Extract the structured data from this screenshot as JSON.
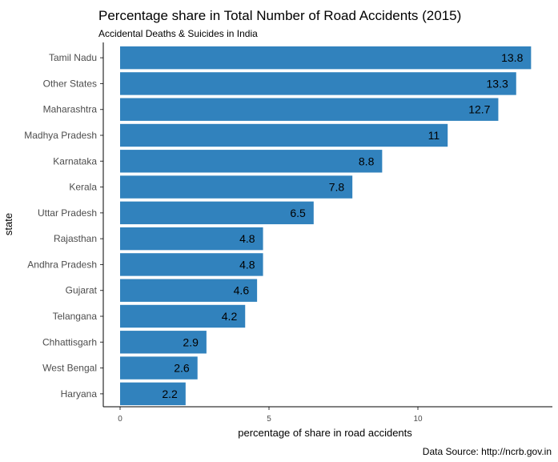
{
  "chart_data": {
    "type": "bar",
    "orientation": "horizontal",
    "title": "Percentage share in Total Number of Road Accidents (2015)",
    "subtitle": "Accidental Deaths & Suicides in India",
    "xlabel": "percentage of share in road accidents",
    "ylabel": "state",
    "caption": "Data Source: http://ncrb.gov.in",
    "xlim": [
      0,
      14
    ],
    "xticks": [
      0,
      5,
      10
    ],
    "grid": false,
    "legend": "none",
    "bar_color": "#3182BD",
    "categories": [
      "Tamil Nadu",
      "Other States",
      "Maharashtra",
      "Madhya Pradesh",
      "Karnataka",
      "Kerala",
      "Uttar Pradesh",
      "Rajasthan",
      "Andhra Pradesh",
      "Gujarat",
      "Telangana",
      "Chhattisgarh",
      "West Bengal",
      "Haryana"
    ],
    "values": [
      13.8,
      13.3,
      12.7,
      11,
      8.8,
      7.8,
      6.5,
      4.8,
      4.8,
      4.6,
      4.2,
      2.9,
      2.6,
      2.2
    ],
    "data_labels": [
      "13.8",
      "13.3",
      "12.7",
      "11",
      "8.8",
      "7.8",
      "6.5",
      "4.8",
      "4.8",
      "4.6",
      "4.2",
      "2.9",
      "2.6",
      "2.2"
    ]
  }
}
